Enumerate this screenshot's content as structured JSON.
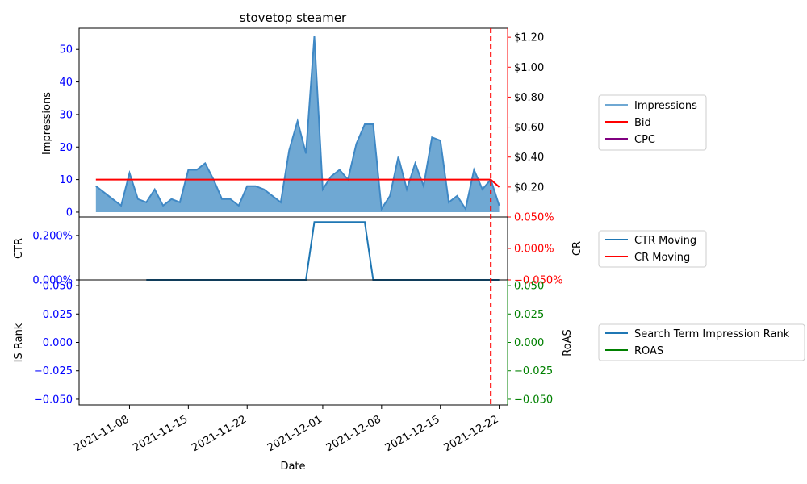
{
  "colors": {
    "impressions_line": "#3f88c5",
    "impressions_fill": "#6fa8d3",
    "bid": "#ff0000",
    "cpc": "#800080",
    "ctr": "#1f77b4",
    "cr": "#ff0000",
    "is_rank": "#1f77b4",
    "roas": "#008000",
    "left_tick": "#0000ff",
    "right_tick_top": "#ff0000",
    "right_tick_bottom": "#008000",
    "vline": "#ff0000"
  },
  "chart_data": {
    "type": "line",
    "title": "stovetop steamer",
    "xlabel": "Date",
    "x_start": "2021-11-04",
    "x_range": [
      "2021-11-02",
      "2021-12-23"
    ],
    "x_ticks": [
      "2021-11-08",
      "2021-11-15",
      "2021-11-22",
      "2021-12-01",
      "2021-12-08",
      "2021-12-15",
      "2021-12-22"
    ],
    "vline_date": "2021-12-21",
    "panels": {
      "top": {
        "ylabel_left": "Impressions",
        "ylim_left": [
          -1.5,
          56.5
        ],
        "yticks_left": [
          "0",
          "10",
          "20",
          "30",
          "40",
          "50"
        ],
        "yticks_left_values": [
          0,
          10,
          20,
          30,
          40,
          50
        ],
        "ylim_right": [
          0.0,
          1.26
        ],
        "yticks_right": [
          "$0.20",
          "$0.40",
          "$0.60",
          "$0.80",
          "$1.00",
          "$1.20"
        ],
        "yticks_right_values": [
          0.2,
          0.4,
          0.6,
          0.8,
          1.0,
          1.2
        ],
        "impressions": [
          8,
          6,
          4,
          2,
          12,
          4,
          3,
          7,
          2,
          4,
          3,
          13,
          13,
          15,
          10,
          4,
          4,
          2,
          8,
          8,
          7,
          5,
          3,
          19,
          28,
          18,
          54,
          7,
          11,
          13,
          10,
          21,
          27,
          27,
          1,
          5,
          17,
          7,
          15,
          8,
          23,
          22,
          3,
          5,
          1,
          13,
          7,
          10,
          2
        ],
        "bid": [
          0.25,
          0.25,
          0.25,
          0.25,
          0.25,
          0.25,
          0.25,
          0.25,
          0.25,
          0.25,
          0.25,
          0.25,
          0.25,
          0.25,
          0.25,
          0.25,
          0.25,
          0.25,
          0.25,
          0.25,
          0.25,
          0.25,
          0.25,
          0.25,
          0.25,
          0.25,
          0.25,
          0.25,
          0.25,
          0.25,
          0.25,
          0.25,
          0.25,
          0.25,
          0.25,
          0.25,
          0.25,
          0.25,
          0.25,
          0.25,
          0.25,
          0.25,
          0.25,
          0.25,
          0.25,
          0.25,
          0.25,
          0.25,
          0.2
        ],
        "legend": [
          "Impressions",
          "Bid",
          "CPC"
        ]
      },
      "middle": {
        "ylabel_left": "CTR",
        "ylabel_right": "CR",
        "ylim_left": [
          0.0,
          0.00283
        ],
        "yticks_left": [
          "0.000%",
          "0.200%"
        ],
        "yticks_left_values": [
          0.0,
          0.002
        ],
        "ylim_right": [
          -0.05,
          0.05
        ],
        "yticks_right": [
          "−0.050%",
          "0.000%",
          "0.050%"
        ],
        "yticks_right_values": [
          -0.05,
          0.0,
          0.05
        ],
        "ctr_moving_start": "2021-11-10",
        "ctr_moving": [
          0,
          0,
          0,
          0,
          0,
          0,
          0,
          0,
          0,
          0,
          0,
          0,
          0,
          0,
          0,
          0,
          0,
          0,
          0,
          0,
          0.0026,
          0.0026,
          0.0026,
          0.0026,
          0.0026,
          0.0026,
          0.0026,
          0,
          0,
          0,
          0,
          0,
          0,
          0,
          0,
          0,
          0,
          0,
          0,
          0,
          0,
          0,
          0
        ],
        "ctr_rise_index": 18,
        "legend": [
          "CTR Moving",
          "CR Moving"
        ]
      },
      "bottom": {
        "ylabel_left": "IS Rank",
        "ylabel_right": "RoAS",
        "ylim_left": [
          -0.055,
          0.055
        ],
        "yticks_left": [
          "−0.050",
          "−0.025",
          "0.000",
          "0.025",
          "0.050"
        ],
        "yticks_left_values": [
          -0.05,
          -0.025,
          0.0,
          0.025,
          0.05
        ],
        "yticks_right": [
          "−0.050",
          "−0.025",
          "0.000",
          "0.025",
          "0.050"
        ],
        "yticks_right_values": [
          -0.05,
          -0.025,
          0.0,
          0.025,
          0.05
        ],
        "legend": [
          "Search Term Impression Rank",
          "ROAS"
        ]
      }
    }
  }
}
